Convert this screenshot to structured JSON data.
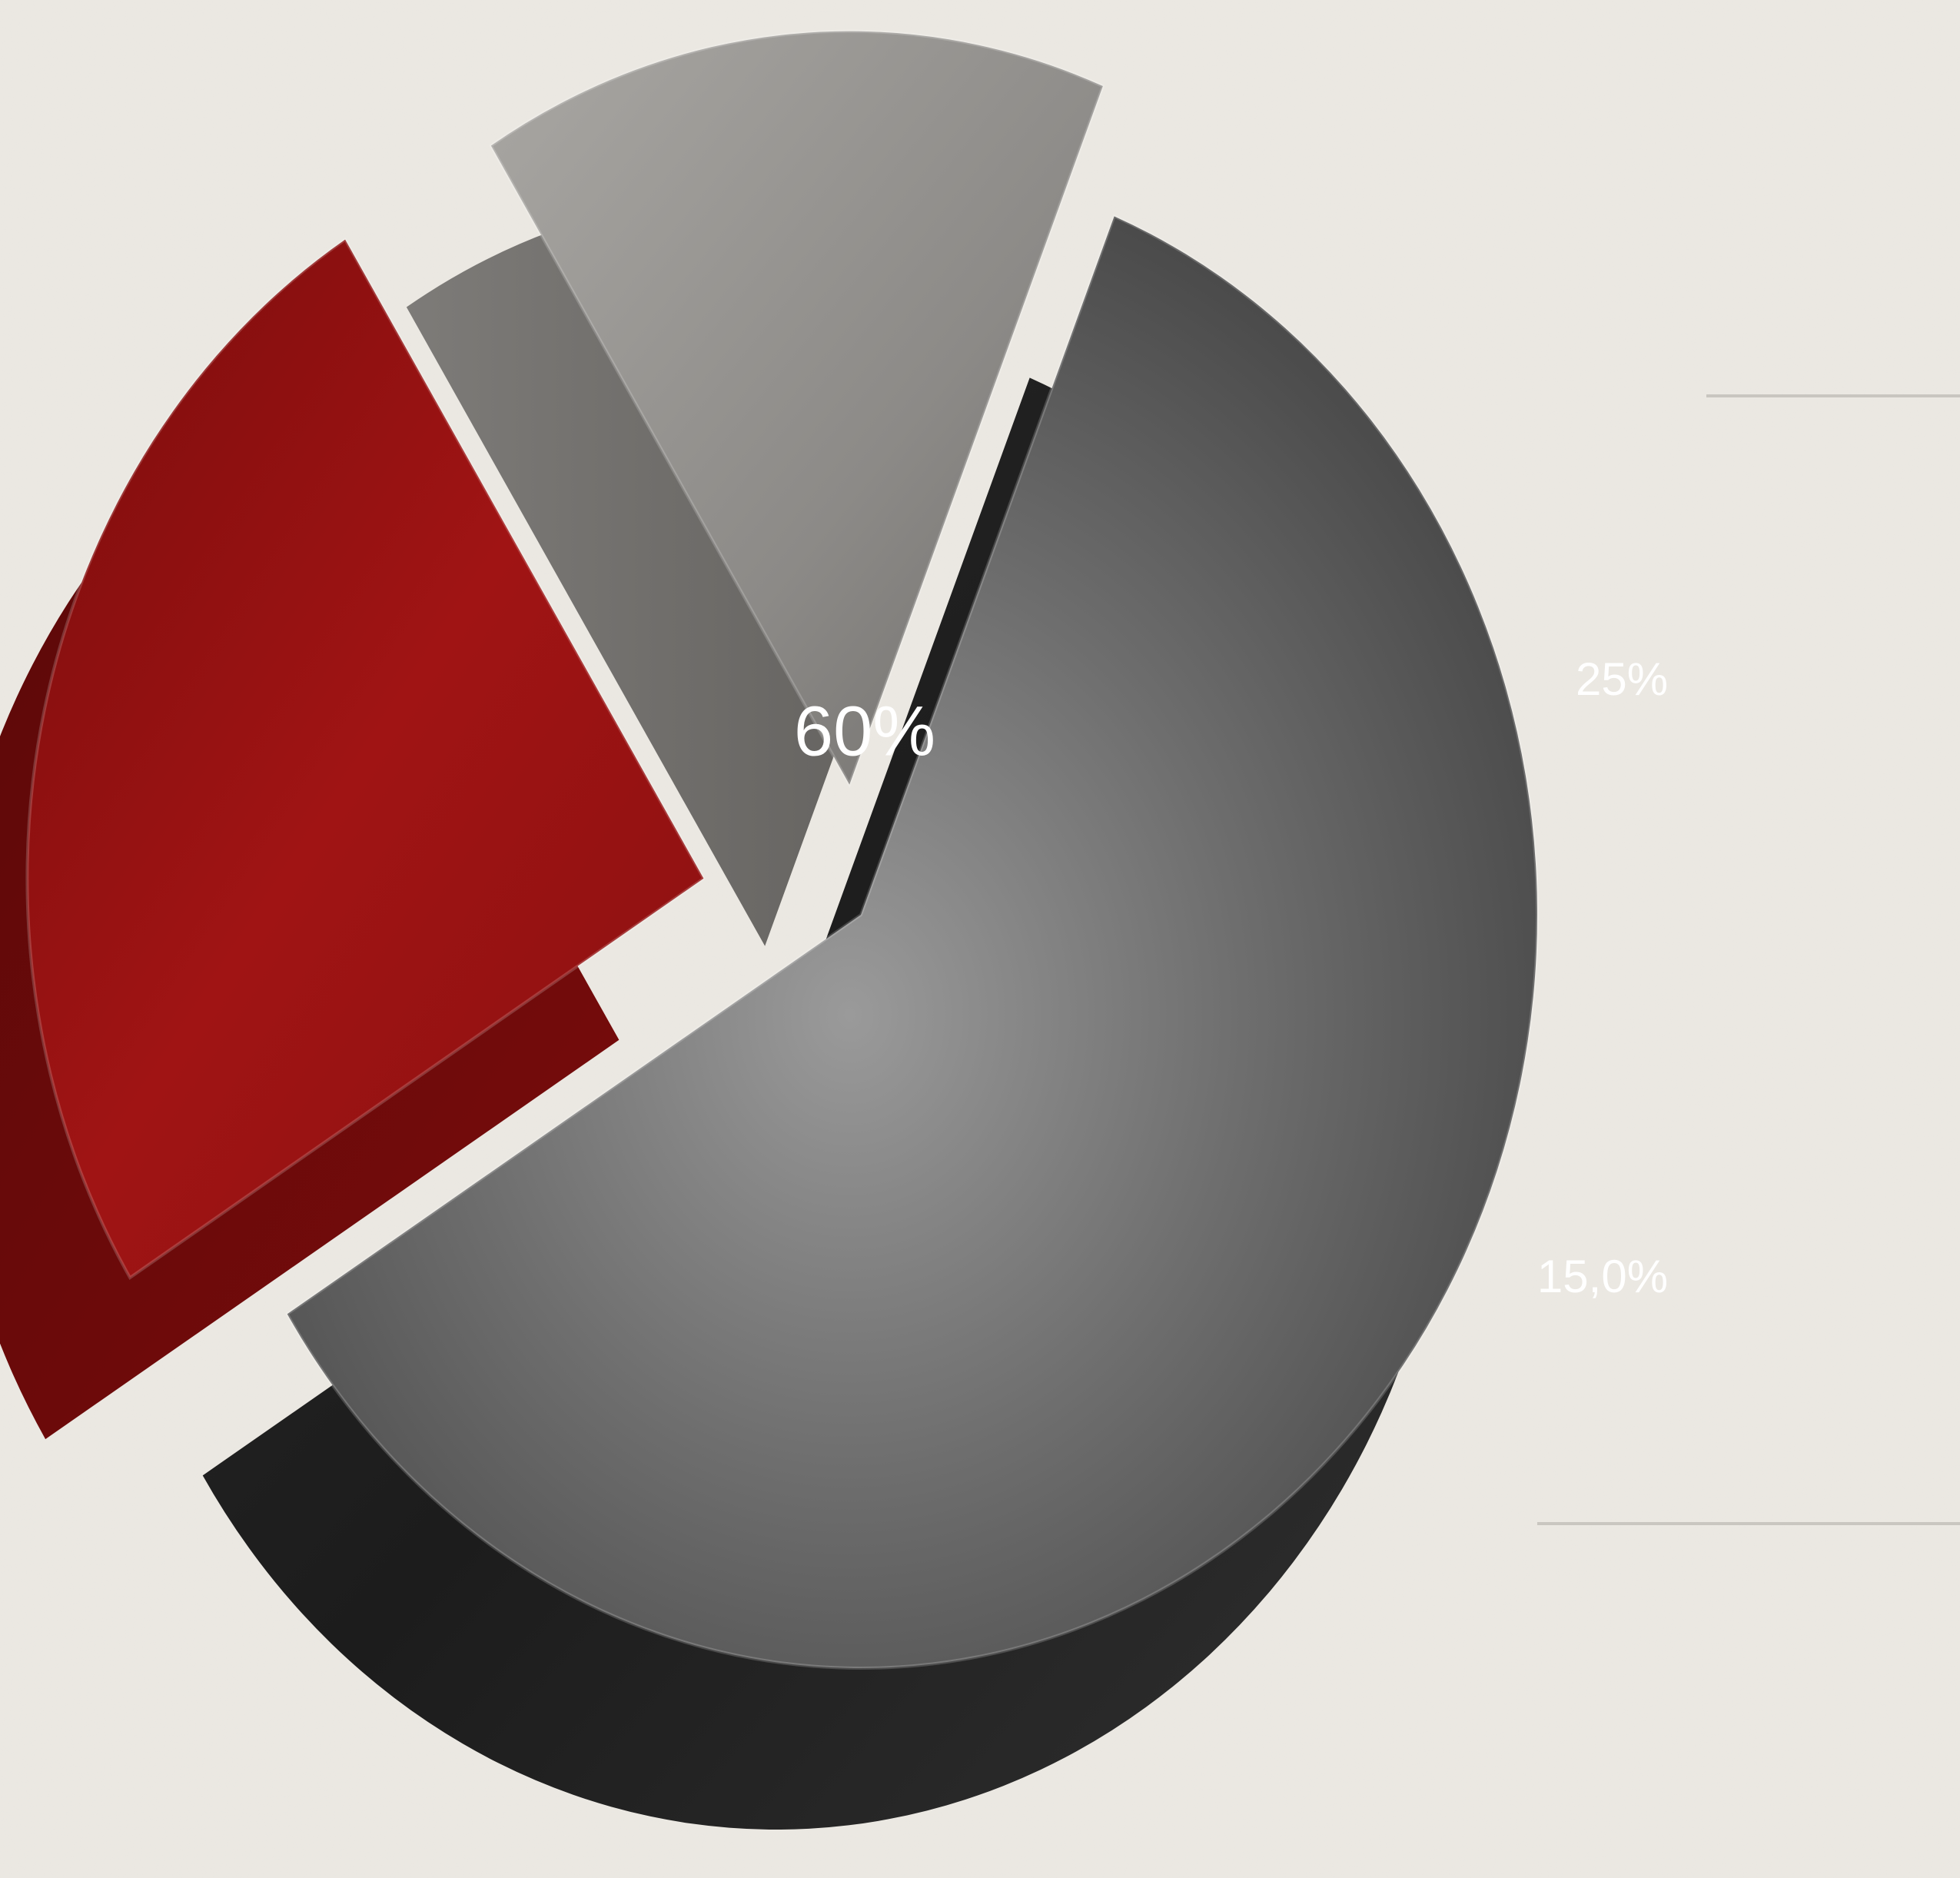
{
  "chart_data": {
    "type": "pie",
    "title": "",
    "slices": [
      {
        "label": "60%",
        "value": 60,
        "color": "#4a4a4a"
      },
      {
        "label": "25%",
        "value": 25,
        "color": "#a01414"
      },
      {
        "label": "15,0%",
        "value": 15,
        "color": "#8c8a87"
      }
    ],
    "style": "3d-exploded",
    "background_color": "#ece9e3"
  }
}
